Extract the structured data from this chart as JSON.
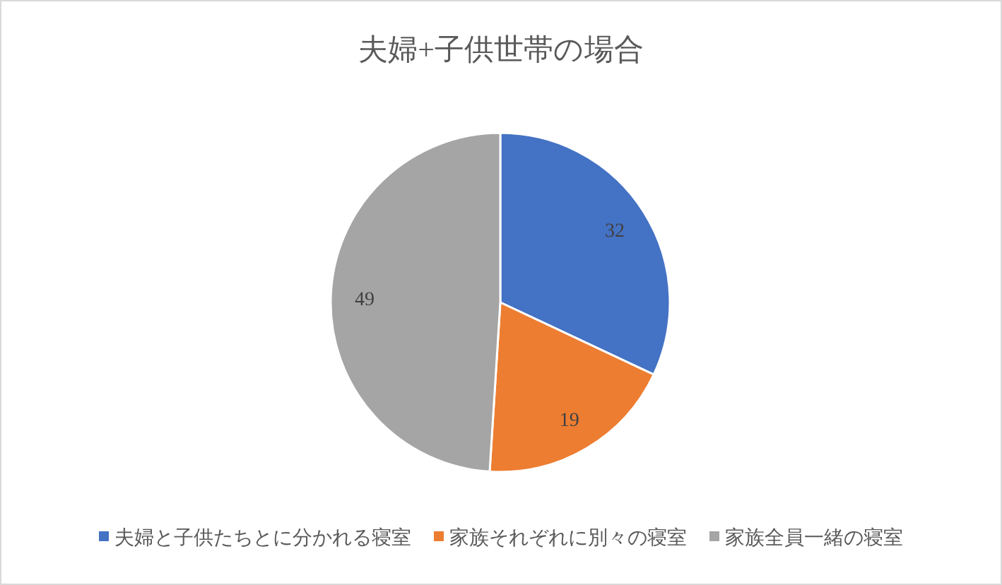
{
  "chart_data": {
    "type": "pie",
    "title": "夫婦+子供世帯の場合",
    "categories": [
      "夫婦と子供たちとに分かれる寝室",
      "家族それぞれに別々の寝室",
      "家族全員一緒の寝室"
    ],
    "values": [
      32,
      19,
      49
    ],
    "colors": [
      "#4472c4",
      "#ed7d31",
      "#a5a5a5"
    ],
    "data_labels": true,
    "legend": "bottom"
  }
}
